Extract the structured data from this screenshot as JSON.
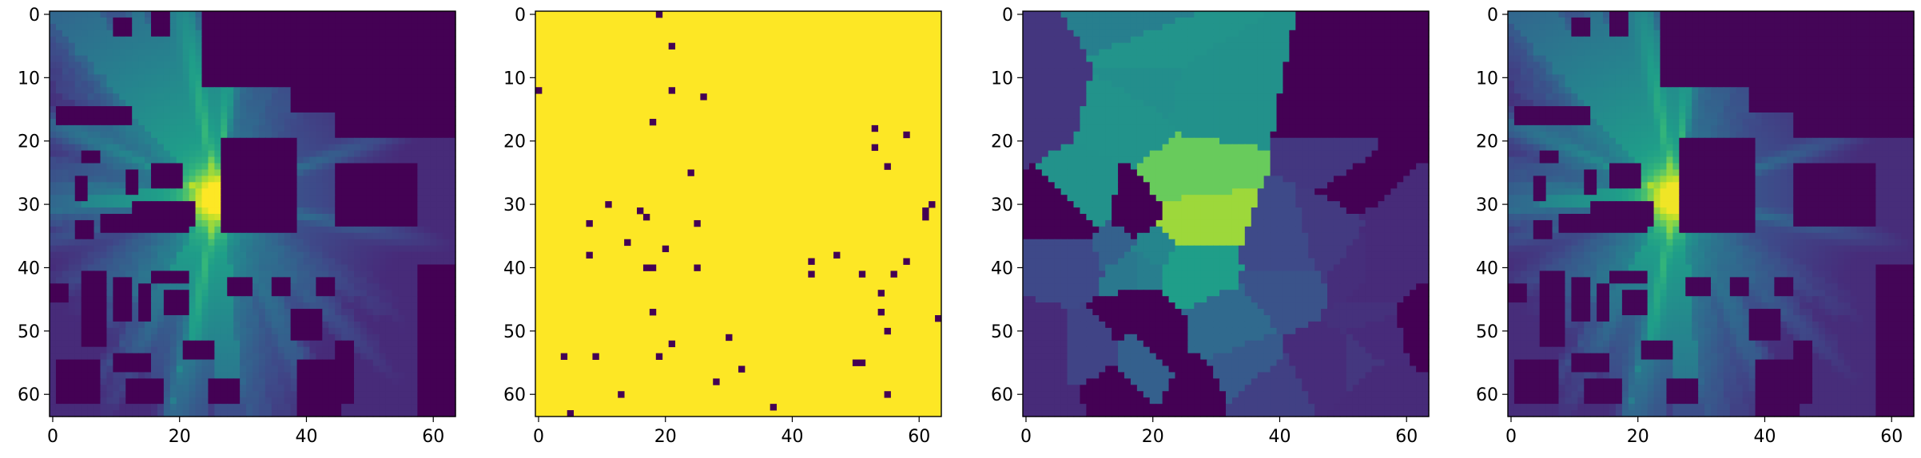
{
  "chart_data": [
    {
      "type": "heatmap",
      "title": "",
      "xlabel": "",
      "ylabel": "",
      "xlim": [
        0,
        64
      ],
      "ylim": [
        64,
        0
      ],
      "xticks": [
        0,
        20,
        40,
        60
      ],
      "yticks": [
        0,
        10,
        20,
        30,
        40,
        50,
        60
      ],
      "colormap": "viridis",
      "description_values": {
        "source_peak": [
          26,
          29
        ],
        "buildings": [
          [
            24,
            0,
            64,
            12
          ],
          [
            38,
            12,
            64,
            16
          ],
          [
            45,
            16,
            64,
            20
          ],
          [
            27,
            20,
            39,
            35
          ],
          [
            45,
            24,
            58,
            34
          ],
          [
            16,
            24,
            21,
            28
          ],
          [
            10,
            1,
            13,
            4
          ],
          [
            16,
            0,
            19,
            4
          ],
          [
            4,
            26,
            6,
            30
          ],
          [
            1,
            15,
            13,
            18
          ],
          [
            5,
            22,
            8,
            24
          ],
          [
            4,
            33,
            7,
            36
          ],
          [
            8,
            32,
            22,
            35
          ],
          [
            13,
            30,
            23,
            34
          ],
          [
            12,
            25,
            14,
            29
          ],
          [
            0,
            43,
            3,
            46
          ],
          [
            5,
            41,
            9,
            53
          ],
          [
            10,
            42,
            13,
            49
          ],
          [
            14,
            43,
            16,
            49
          ],
          [
            16,
            41,
            22,
            43
          ],
          [
            18,
            44,
            22,
            48
          ],
          [
            28,
            42,
            32,
            45
          ],
          [
            35,
            42,
            38,
            45
          ],
          [
            42,
            42,
            45,
            45
          ],
          [
            1,
            55,
            8,
            62
          ],
          [
            10,
            54,
            16,
            57
          ],
          [
            12,
            58,
            18,
            62
          ],
          [
            21,
            52,
            26,
            55
          ],
          [
            25,
            58,
            30,
            62
          ],
          [
            38,
            47,
            43,
            52
          ],
          [
            39,
            55,
            46,
            64
          ],
          [
            45,
            52,
            48,
            62
          ],
          [
            58,
            40,
            64,
            64
          ]
        ]
      }
    },
    {
      "type": "heatmap",
      "title": "",
      "xlabel": "",
      "ylabel": "",
      "xlim": [
        0,
        64
      ],
      "ylim": [
        64,
        0
      ],
      "xticks": [
        0,
        20,
        40,
        60
      ],
      "yticks": [
        0,
        10,
        20,
        30,
        40,
        50,
        60
      ],
      "colormap": "binary mask",
      "background_color": "#fde725",
      "point_color": "#440154",
      "sample_points": [
        [
          19,
          0
        ],
        [
          21,
          5
        ],
        [
          0,
          12
        ],
        [
          21,
          12
        ],
        [
          26,
          13
        ],
        [
          18,
          17
        ],
        [
          53,
          18
        ],
        [
          58,
          19
        ],
        [
          53,
          21
        ],
        [
          55,
          24
        ],
        [
          24,
          25
        ],
        [
          62,
          30
        ],
        [
          11,
          30
        ],
        [
          61,
          31
        ],
        [
          16,
          31
        ],
        [
          17,
          32
        ],
        [
          61,
          32
        ],
        [
          8,
          33
        ],
        [
          25,
          33
        ],
        [
          14,
          36
        ],
        [
          20,
          37
        ],
        [
          47,
          38
        ],
        [
          8,
          38
        ],
        [
          43,
          39
        ],
        [
          58,
          39
        ],
        [
          17,
          40
        ],
        [
          18,
          40
        ],
        [
          25,
          40
        ],
        [
          43,
          41
        ],
        [
          51,
          41
        ],
        [
          56,
          41
        ],
        [
          54,
          44
        ],
        [
          18,
          47
        ],
        [
          54,
          47
        ],
        [
          63,
          48
        ],
        [
          55,
          50
        ],
        [
          30,
          51
        ],
        [
          21,
          52
        ],
        [
          4,
          54
        ],
        [
          9,
          54
        ],
        [
          19,
          54
        ],
        [
          50,
          55
        ],
        [
          51,
          55
        ],
        [
          32,
          56
        ],
        [
          28,
          58
        ],
        [
          13,
          60
        ],
        [
          55,
          60
        ],
        [
          37,
          62
        ],
        [
          5,
          63
        ]
      ]
    },
    {
      "type": "heatmap",
      "title": "",
      "xlabel": "",
      "ylabel": "",
      "xlim": [
        0,
        64
      ],
      "ylim": [
        64,
        0
      ],
      "xticks": [
        0,
        20,
        40,
        60
      ],
      "yticks": [
        0,
        10,
        20,
        30,
        40,
        50,
        60
      ],
      "colormap": "viridis",
      "interpolation": "nearest-neighbour (Voronoi) from sampled points"
    },
    {
      "type": "heatmap",
      "title": "",
      "xlabel": "",
      "ylabel": "",
      "xlim": [
        0,
        64
      ],
      "ylim": [
        64,
        0
      ],
      "xticks": [
        0,
        20,
        40,
        60
      ],
      "yticks": [
        0,
        10,
        20,
        30,
        40,
        50,
        60
      ],
      "colormap": "viridis",
      "description": "reconstruction of panel 1"
    }
  ]
}
